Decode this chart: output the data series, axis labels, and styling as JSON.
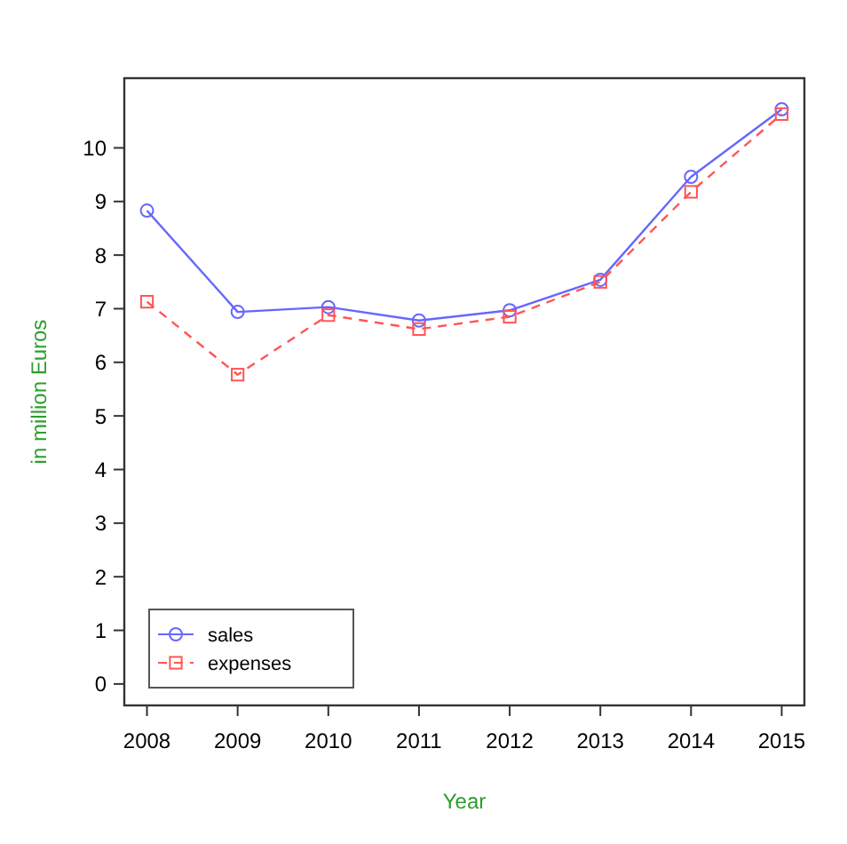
{
  "chart_data": {
    "type": "line",
    "xlabel": "Year",
    "ylabel": "in million Euros",
    "x": [
      2008,
      2009,
      2010,
      2011,
      2012,
      2013,
      2014,
      2015
    ],
    "series": [
      {
        "name": "sales",
        "color": "#6666ff",
        "values": [
          8.83,
          6.94,
          7.03,
          6.78,
          6.97,
          7.54,
          9.46,
          10.72
        ],
        "marker": "circle",
        "line_style": "solid"
      },
      {
        "name": "expenses",
        "color": "#ff5555",
        "values": [
          7.13,
          5.77,
          6.88,
          6.62,
          6.85,
          7.5,
          9.18,
          10.63
        ],
        "marker": "square",
        "line_style": "dashed"
      }
    ],
    "xlim": [
      2007.75,
      2015.25
    ],
    "xticks": [
      2008,
      2009,
      2010,
      2011,
      2012,
      2013,
      2014,
      2015
    ],
    "ylim": [
      -0.4,
      11.3
    ],
    "yticks": [
      0,
      1,
      2,
      3,
      4,
      5,
      6,
      7,
      8,
      9,
      10
    ],
    "grid": false,
    "legend": "bottom left"
  }
}
